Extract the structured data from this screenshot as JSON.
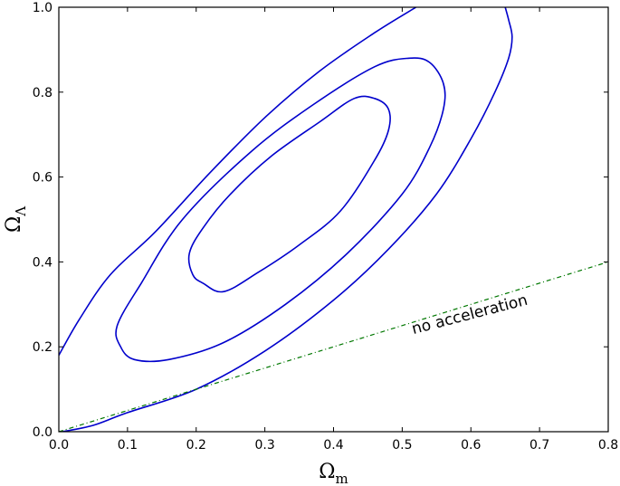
{
  "chart_data": {
    "type": "line",
    "title": "",
    "xlabel": {
      "main": "Ω",
      "sub": "m"
    },
    "ylabel": {
      "main": "Ω",
      "sub": "Λ"
    },
    "xlim": [
      0.0,
      0.8
    ],
    "ylim": [
      0.0,
      1.0
    ],
    "xticks": [
      "0.0",
      "0.1",
      "0.2",
      "0.3",
      "0.4",
      "0.5",
      "0.6",
      "0.7",
      "0.8"
    ],
    "yticks": [
      "0.0",
      "0.2",
      "0.4",
      "0.6",
      "0.8",
      "1.0"
    ],
    "grid": false,
    "colors": {
      "contours": "#0000cc",
      "reference": "#007700"
    },
    "series": [
      {
        "style": "solid",
        "closed": true,
        "points": [
          [
            0.21,
            0.35
          ],
          [
            0.24,
            0.33
          ],
          [
            0.29,
            0.375
          ],
          [
            0.35,
            0.44
          ],
          [
            0.41,
            0.52
          ],
          [
            0.46,
            0.64
          ],
          [
            0.48,
            0.71
          ],
          [
            0.48,
            0.76
          ],
          [
            0.46,
            0.785
          ],
          [
            0.43,
            0.785
          ],
          [
            0.38,
            0.73
          ],
          [
            0.31,
            0.65
          ],
          [
            0.25,
            0.56
          ],
          [
            0.21,
            0.48
          ],
          [
            0.19,
            0.42
          ],
          [
            0.195,
            0.37
          ]
        ]
      },
      {
        "style": "solid",
        "closed": true,
        "points": [
          [
            0.11,
            0.17
          ],
          [
            0.16,
            0.17
          ],
          [
            0.24,
            0.21
          ],
          [
            0.33,
            0.3
          ],
          [
            0.42,
            0.42
          ],
          [
            0.5,
            0.56
          ],
          [
            0.54,
            0.67
          ],
          [
            0.56,
            0.76
          ],
          [
            0.56,
            0.82
          ],
          [
            0.54,
            0.87
          ],
          [
            0.51,
            0.88
          ],
          [
            0.46,
            0.86
          ],
          [
            0.37,
            0.77
          ],
          [
            0.28,
            0.66
          ],
          [
            0.18,
            0.5
          ],
          [
            0.12,
            0.35
          ],
          [
            0.085,
            0.25
          ],
          [
            0.09,
            0.2
          ]
        ]
      },
      {
        "style": "solid",
        "closed": false,
        "points": [
          [
            0.0,
            0.18
          ],
          [
            0.03,
            0.265
          ],
          [
            0.075,
            0.37
          ],
          [
            0.14,
            0.47
          ],
          [
            0.22,
            0.61
          ],
          [
            0.3,
            0.74
          ],
          [
            0.38,
            0.85
          ],
          [
            0.46,
            0.94
          ],
          [
            0.52,
            1.0
          ]
        ]
      },
      {
        "style": "solid",
        "closed": false,
        "points": [
          [
            0.005,
            0.0
          ],
          [
            0.05,
            0.015
          ],
          [
            0.1,
            0.045
          ],
          [
            0.2,
            0.1
          ],
          [
            0.3,
            0.19
          ],
          [
            0.4,
            0.31
          ],
          [
            0.48,
            0.43
          ],
          [
            0.55,
            0.56
          ],
          [
            0.6,
            0.69
          ],
          [
            0.635,
            0.8
          ],
          [
            0.655,
            0.88
          ],
          [
            0.66,
            0.93
          ],
          [
            0.655,
            0.97
          ],
          [
            0.65,
            1.0
          ]
        ]
      },
      {
        "style": "dashdot",
        "closed": false,
        "points": [
          [
            0.0,
            0.0
          ],
          [
            0.8,
            0.4
          ]
        ]
      }
    ],
    "annotations": [
      {
        "text": "no acceleration",
        "x": 0.6,
        "y": 0.265,
        "angle_deg": -14.5
      }
    ]
  }
}
